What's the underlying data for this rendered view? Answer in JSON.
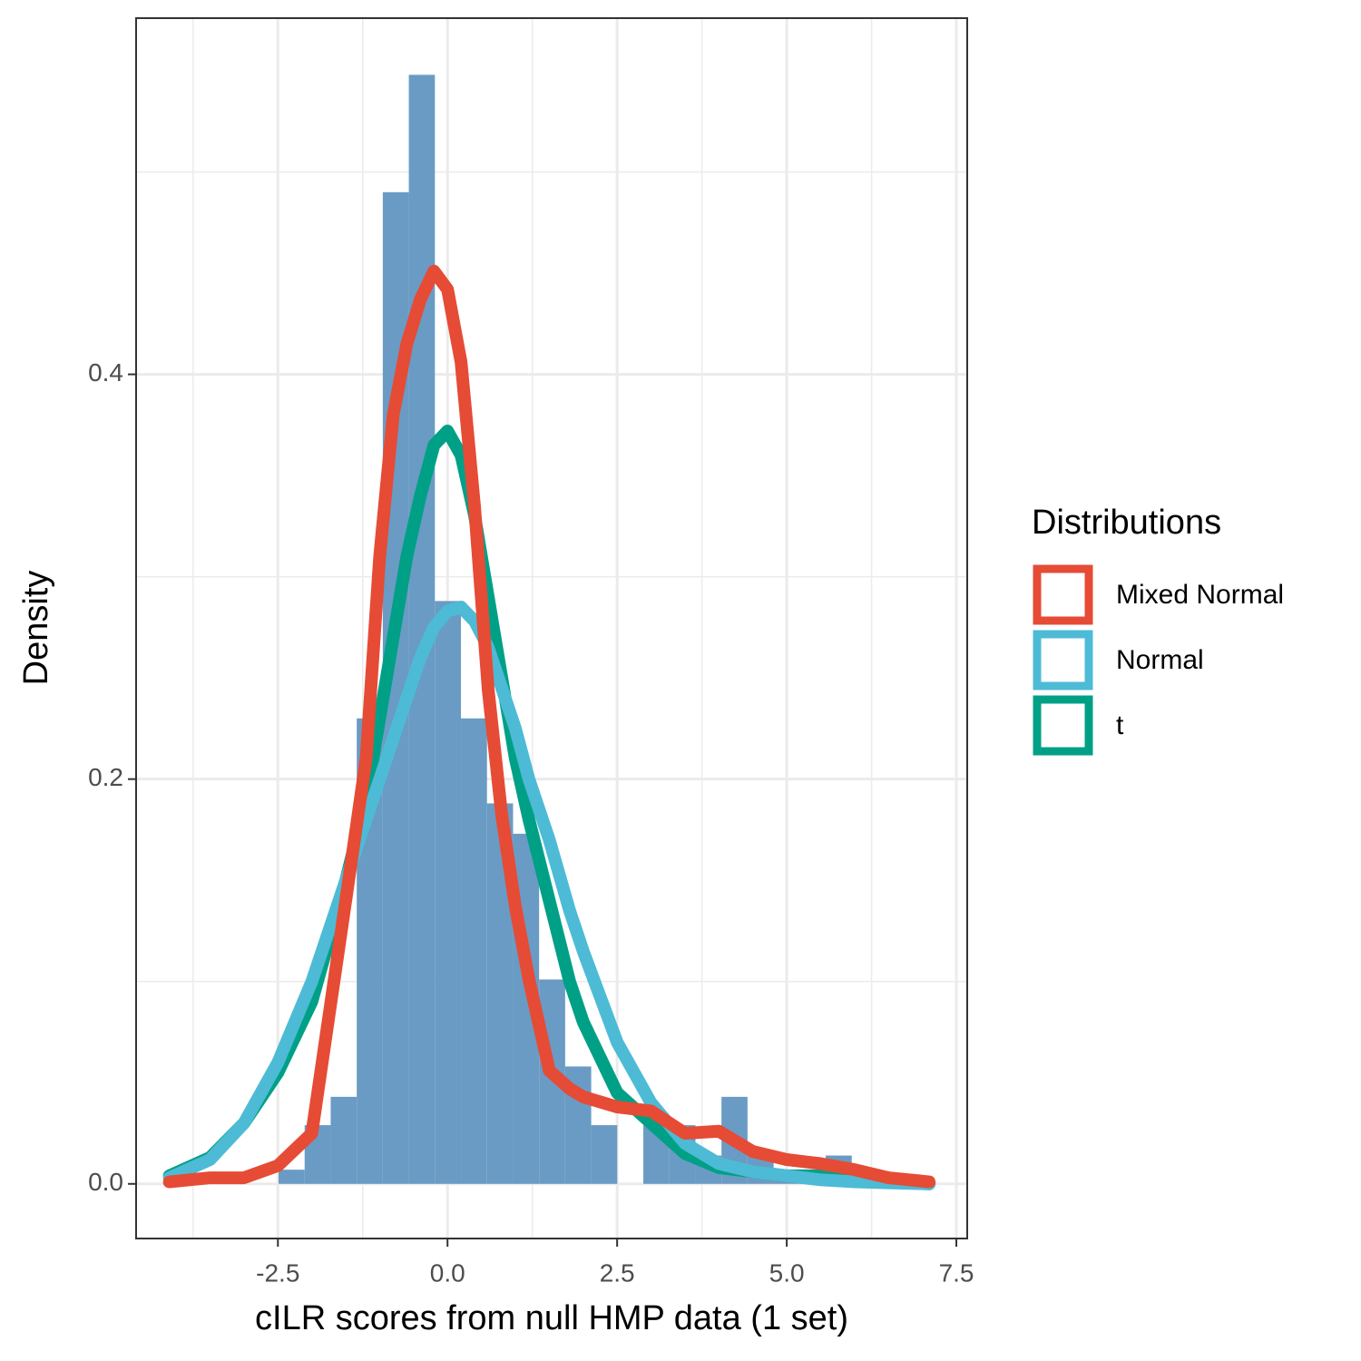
{
  "chart_data": {
    "type": "histogram-density",
    "xlabel": "cILR scores from null HMP data (1 set)",
    "ylabel": "Density",
    "xlim": [
      -4.59,
      7.66
    ],
    "ylim": [
      -0.027,
      0.576
    ],
    "xticks": [
      {
        "value": -2.5,
        "label": "-2.5"
      },
      {
        "value": 0,
        "label": "0.0"
      },
      {
        "value": 2.5,
        "label": "2.5"
      },
      {
        "value": 5,
        "label": "5.0"
      },
      {
        "value": 7.5,
        "label": "7.5"
      }
    ],
    "yticks": [
      {
        "value": 0,
        "label": "0.0"
      },
      {
        "value": 0.2,
        "label": "0.2"
      },
      {
        "value": 0.4,
        "label": "0.4"
      }
    ],
    "xminor": [
      -3.75,
      -1.25,
      1.25,
      3.75,
      6.25
    ],
    "yminor": [
      0.1,
      0.3,
      0.5
    ],
    "grid": true,
    "histogram": {
      "color": "#6a9bc4",
      "bins": [
        -2.49,
        -2.106,
        -1.722,
        -1.338,
        -0.954,
        -0.57,
        -0.186,
        0.198,
        0.582,
        0.966,
        1.35,
        1.734,
        2.118,
        2.502,
        2.886,
        3.27,
        3.654,
        4.038,
        4.422,
        4.806,
        5.19,
        5.574,
        5.958
      ],
      "counts": [
        0.007,
        0.029,
        0.043,
        0.23,
        0.49,
        0.548,
        0.288,
        0.23,
        0.188,
        0.173,
        0.101,
        0.058,
        0.029,
        0,
        0.029,
        0.029,
        0.014,
        0.043,
        0.014,
        0.007,
        0.007,
        0.014
      ]
    },
    "x": [
      -4.1,
      -3.5,
      -3,
      -2.5,
      -2,
      -1.5,
      -1.2,
      -1,
      -0.8,
      -0.6,
      -0.4,
      -0.2,
      0,
      0.2,
      0.4,
      0.6,
      0.8,
      1,
      1.2,
      1.5,
      1.8,
      2,
      2.5,
      3,
      3.5,
      4,
      4.5,
      5,
      5.5,
      6,
      6.5,
      7.1
    ],
    "legend_title": "Distributions",
    "series": [
      {
        "name": "Mixed Normal",
        "color": "#e64b35",
        "values": [
          0.001,
          0.003,
          0.003,
          0.009,
          0.025,
          0.14,
          0.21,
          0.31,
          0.38,
          0.415,
          0.437,
          0.451,
          0.442,
          0.406,
          0.334,
          0.244,
          0.182,
          0.137,
          0.101,
          0.056,
          0.047,
          0.043,
          0.038,
          0.036,
          0.025,
          0.026,
          0.016,
          0.012,
          0.01,
          0.007,
          0.003,
          0.001
        ]
      },
      {
        "name": "Normal",
        "color": "#4dbbd5",
        "values": [
          0.003,
          0.012,
          0.03,
          0.06,
          0.1,
          0.15,
          0.18,
          0.2,
          0.22,
          0.24,
          0.26,
          0.275,
          0.283,
          0.285,
          0.278,
          0.265,
          0.245,
          0.225,
          0.2,
          0.17,
          0.135,
          0.115,
          0.07,
          0.04,
          0.02,
          0.01,
          0.006,
          0.004,
          0.002,
          0.001,
          0.0005,
          0
        ]
      },
      {
        "name": "t",
        "color": "#00a087",
        "values": [
          0.004,
          0.013,
          0.03,
          0.055,
          0.09,
          0.15,
          0.19,
          0.23,
          0.27,
          0.31,
          0.34,
          0.365,
          0.372,
          0.36,
          0.33,
          0.29,
          0.25,
          0.21,
          0.18,
          0.14,
          0.1,
          0.08,
          0.045,
          0.03,
          0.015,
          0.008,
          0.006,
          0.004,
          0.004,
          0.002,
          0.001,
          0
        ]
      }
    ]
  }
}
